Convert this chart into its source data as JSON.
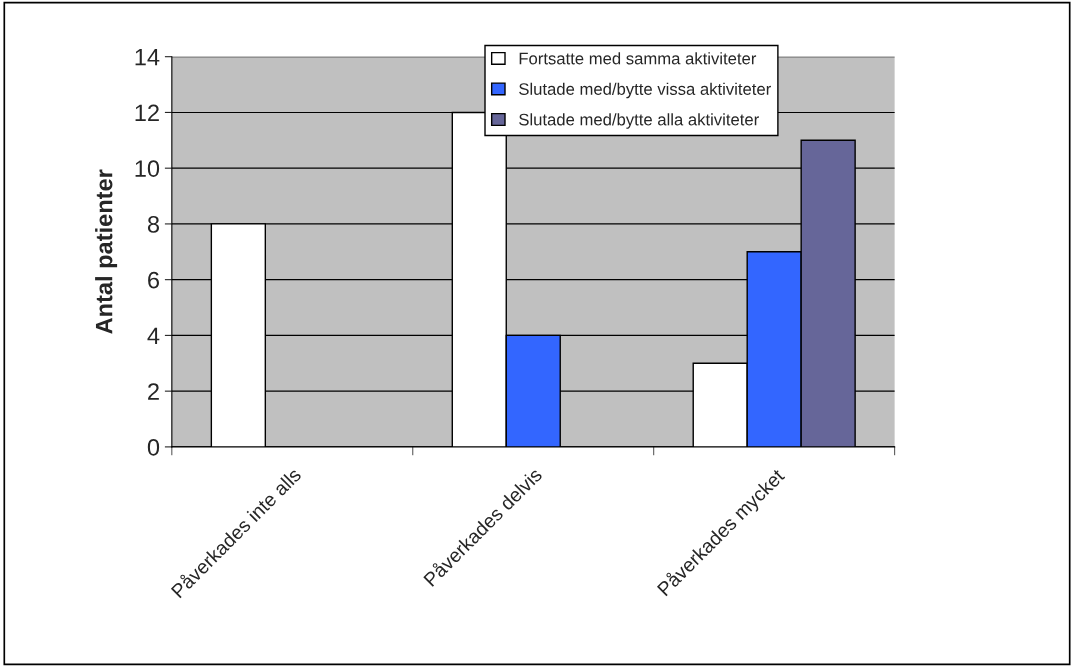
{
  "chart_data": {
    "type": "bar",
    "ylabel": "Antal patienter",
    "categories": [
      "Påverkades inte alls",
      "Påverkades delvis",
      "Påverkades mycket"
    ],
    "series": [
      {
        "name": "Fortsatte med samma aktiviteter",
        "color": "#ffffff",
        "values": [
          8,
          12,
          3
        ]
      },
      {
        "name": "Slutade med/bytte vissa aktiviteter",
        "color": "#3366ff",
        "values": [
          null,
          4,
          7
        ]
      },
      {
        "name": "Slutade med/bytte alla aktiviteter",
        "color": "#666699",
        "values": [
          null,
          null,
          11
        ]
      }
    ],
    "ylim": [
      0,
      14
    ],
    "yticks": [
      0,
      2,
      4,
      6,
      8,
      10,
      12,
      14
    ],
    "grid": "y",
    "legend": "top right"
  }
}
